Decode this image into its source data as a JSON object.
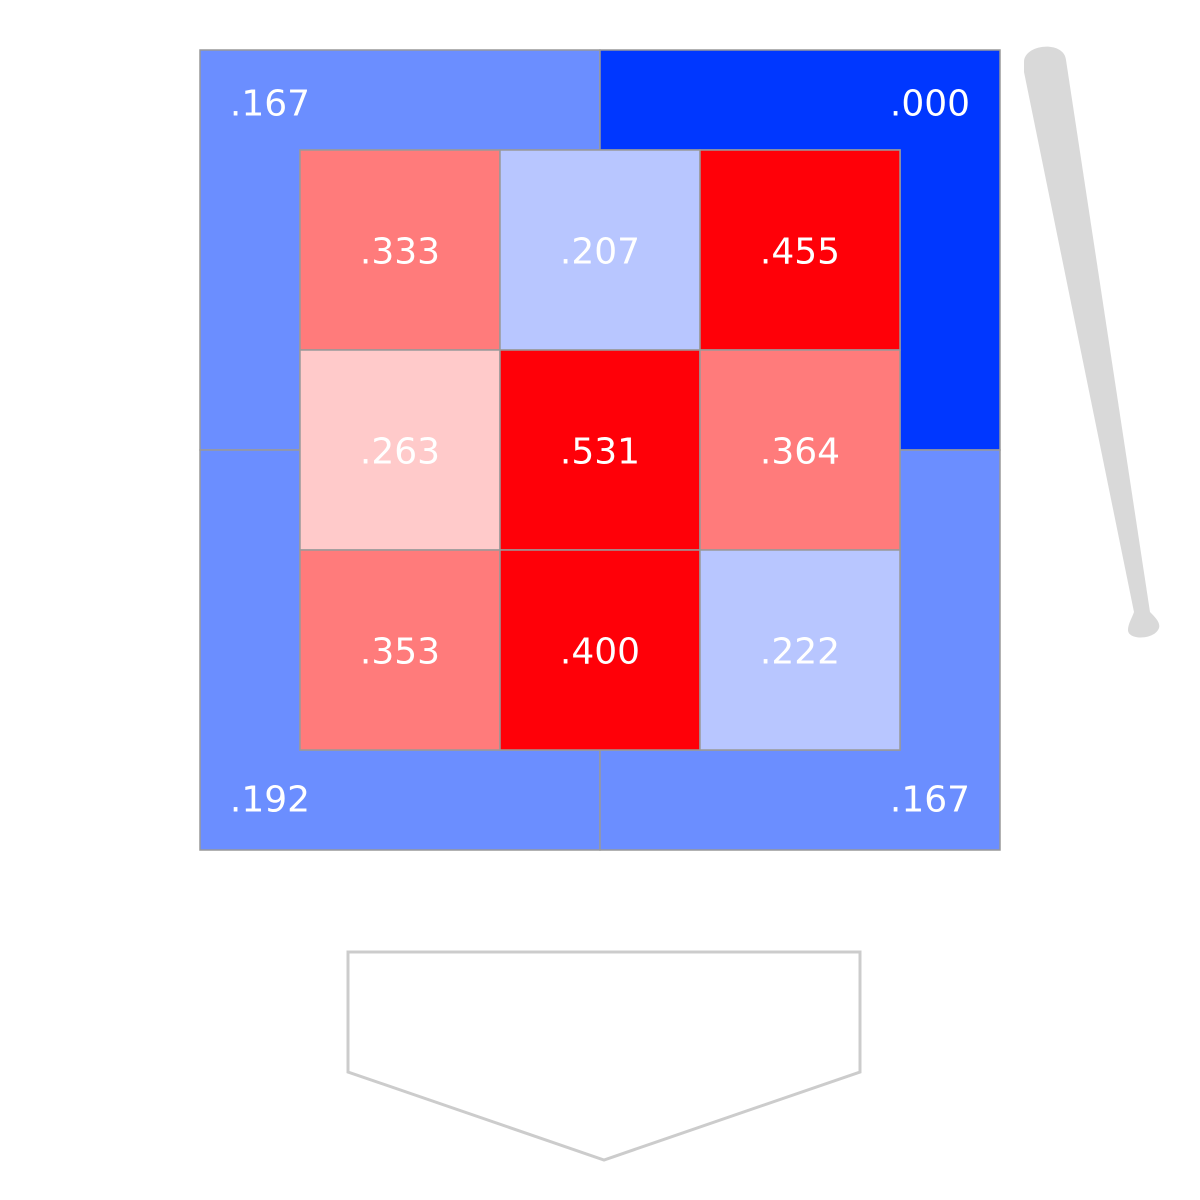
{
  "chart_data": {
    "type": "heatmap",
    "title": "",
    "inner_zone": {
      "rows": [
        [
          ".333",
          ".207",
          ".455"
        ],
        [
          ".263",
          ".531",
          ".364"
        ],
        [
          ".353",
          ".400",
          ".222"
        ]
      ],
      "colors": [
        [
          "#ff7b7b",
          "#b8c6ff",
          "#ff0008"
        ],
        [
          "#ffcaca",
          "#ff0008",
          "#ff7b7b"
        ],
        [
          "#ff7b7b",
          "#ff0008",
          "#b8c6ff"
        ]
      ]
    },
    "outer_zone": {
      "top_left": {
        "value": ".167",
        "color": "#6b8eff"
      },
      "top_right": {
        "value": ".000",
        "color": "#0037ff"
      },
      "bottom_left": {
        "value": ".192",
        "color": "#6b8eff"
      },
      "bottom_right": {
        "value": ".167",
        "color": "#6b8eff"
      }
    },
    "grid_line_color": "#999999",
    "icons": [
      "baseball-bat-icon",
      "home-plate-icon"
    ]
  }
}
